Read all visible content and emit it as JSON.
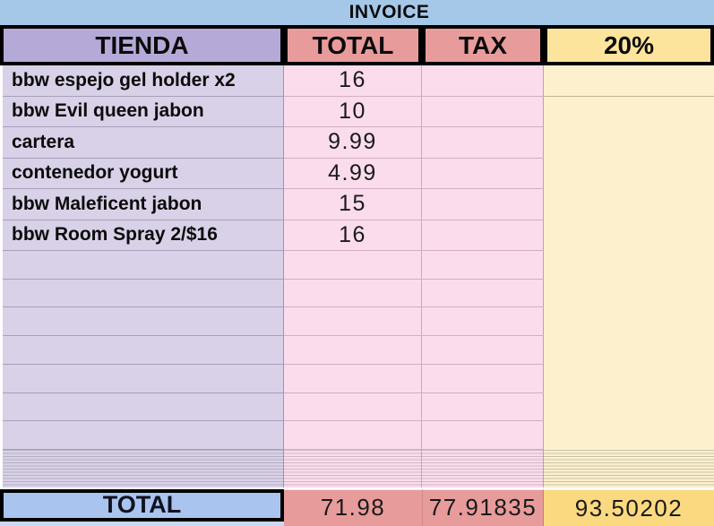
{
  "title": "INVOICE",
  "header": {
    "col_item": "TIENDA",
    "col_total": "TOTAL",
    "col_tax": "TAX",
    "col_pct": "20%"
  },
  "items": [
    {
      "name": "bbw espejo gel holder x2",
      "total": "16"
    },
    {
      "name": "bbw Evil queen jabon",
      "total": "10"
    },
    {
      "name": "cartera",
      "total": "9.99"
    },
    {
      "name": "contenedor yogurt",
      "total": "4.99"
    },
    {
      "name": "bbw Maleficent jabon",
      "total": "15"
    },
    {
      "name": "bbw Room Spray 2/$16",
      "total": "16"
    }
  ],
  "empty_rows": 7,
  "compressed_thin_rows": 12,
  "summary": {
    "label": "TOTAL",
    "total": "71.98",
    "tax": "77.91835",
    "pct": "93.50202"
  },
  "colors": {
    "band_blue": "#a5c8e9",
    "header_purple": "#b5a9d7",
    "header_salmon": "#e89b9b",
    "header_yellow": "#fce49c",
    "body_lavender": "#d8d1e7",
    "body_pink": "#fadced",
    "body_yellow": "#fcf0cd",
    "total_blue": "#a9c4ee",
    "total_salmon": "#e89b9b",
    "total_yellow": "#fbd980",
    "border_black": "#000000"
  }
}
